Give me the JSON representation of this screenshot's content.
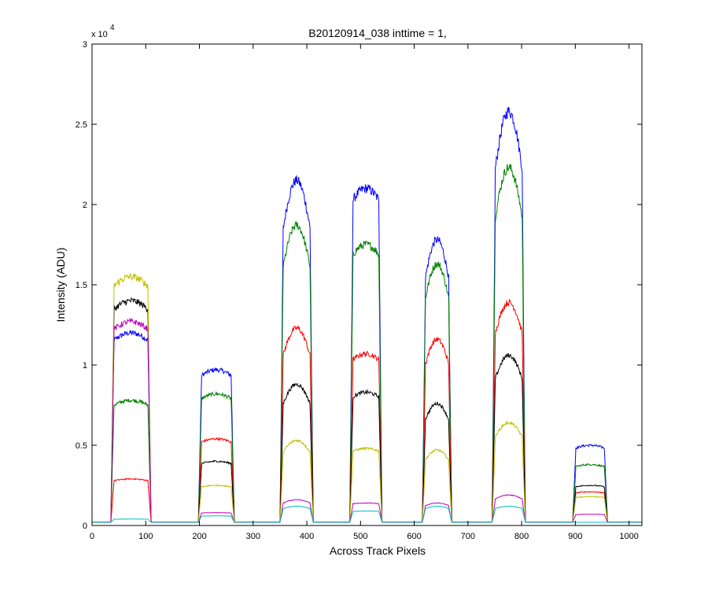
{
  "chart_data": {
    "type": "line",
    "title": "B20120914_038 inttime = 1,",
    "xlabel": "Across Track Pixels",
    "ylabel": "Intensity (ADU)",
    "y_multiplier_base": "x 10",
    "y_multiplier_exponent": "4",
    "xlim": [
      0,
      1024
    ],
    "ylim": [
      0,
      30000
    ],
    "x_ticks": [
      0,
      100,
      200,
      300,
      400,
      500,
      600,
      700,
      800,
      900,
      1000
    ],
    "x_tick_labels": [
      "0",
      "100",
      "200",
      "300",
      "400",
      "500",
      "600",
      "700",
      "800",
      "900",
      "1000"
    ],
    "y_ticks": [
      0,
      5000,
      10000,
      15000,
      20000,
      25000,
      30000
    ],
    "y_tick_labels": [
      "0",
      "0.5",
      "1",
      "1.5",
      "2",
      "2.5",
      "3"
    ],
    "grid": false,
    "baseline": 200,
    "bands": [
      {
        "start": 35,
        "end": 110,
        "shape": "flat"
      },
      {
        "start": 198,
        "end": 265,
        "shape": "flat"
      },
      {
        "start": 350,
        "end": 412,
        "shape": "peaked"
      },
      {
        "start": 480,
        "end": 540,
        "shape": "flat"
      },
      {
        "start": 615,
        "end": 670,
        "shape": "peaked"
      },
      {
        "start": 745,
        "end": 807,
        "shape": "peaked"
      },
      {
        "start": 895,
        "end": 960,
        "shape": "flat"
      }
    ],
    "series": [
      {
        "color": "#0000ff",
        "levels": [
          12000,
          9700,
          21500,
          21000,
          17800,
          25800,
          5000
        ]
      },
      {
        "color": "#008000",
        "levels": [
          7800,
          8200,
          18700,
          17500,
          16300,
          22300,
          3800
        ]
      },
      {
        "color": "#ff0000",
        "levels": [
          2900,
          5400,
          12300,
          10700,
          11600,
          13900,
          2100
        ]
      },
      {
        "color": "#000000",
        "levels": [
          14000,
          4000,
          8800,
          8300,
          7600,
          10600,
          2500
        ]
      },
      {
        "color": "#bfbf00",
        "levels": [
          15500,
          2500,
          5300,
          4800,
          4700,
          6400,
          1800
        ]
      },
      {
        "color": "#bf00bf",
        "levels": [
          12700,
          800,
          1600,
          1400,
          1400,
          1900,
          700
        ]
      },
      {
        "color": "#00bfbf",
        "levels": [
          400,
          600,
          1200,
          900,
          1200,
          1200,
          200
        ]
      }
    ]
  }
}
